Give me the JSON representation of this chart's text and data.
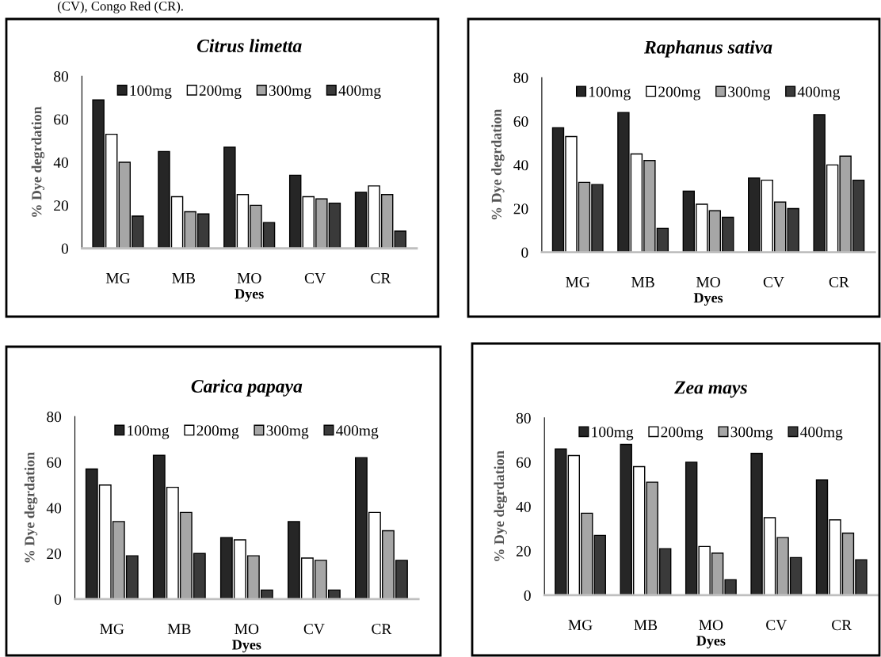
{
  "chart_data": [
    {
      "type": "bar",
      "title": "Citrus limetta",
      "xlabel": "Dyes",
      "ylabel": "% Dye degrdation",
      "annotations": [
        "(CV), Congo Red (CR)."
      ],
      "categories": [
        "MG",
        "MB",
        "MO",
        "CV",
        "CR"
      ],
      "ylim": [
        0,
        80
      ],
      "yticks": [
        0,
        20,
        40,
        60,
        80
      ],
      "grid": false,
      "legend": "top",
      "series": [
        {
          "name": "100mg",
          "color": "#262626",
          "values": [
            69,
            45,
            47,
            34,
            26
          ]
        },
        {
          "name": "200mg",
          "color": "#ffffff",
          "values": [
            53,
            24,
            25,
            24,
            29
          ]
        },
        {
          "name": "300mg",
          "color": "#a6a6a6",
          "values": [
            40,
            17,
            20,
            23,
            25
          ]
        },
        {
          "name": "400mg",
          "color": "#3a3a3a",
          "values": [
            15,
            16,
            12,
            21,
            8
          ]
        }
      ]
    },
    {
      "type": "bar",
      "title": "Raphanus sativa",
      "xlabel": "Dyes",
      "ylabel": "% Dye degrdation",
      "categories": [
        "MG",
        "MB",
        "MO",
        "CV",
        "CR"
      ],
      "ylim": [
        0,
        80
      ],
      "yticks": [
        0,
        20,
        40,
        60,
        80
      ],
      "grid": false,
      "legend": "top",
      "series": [
        {
          "name": "100mg",
          "color": "#262626",
          "values": [
            57,
            64,
            28,
            34,
            63
          ]
        },
        {
          "name": "200mg",
          "color": "#ffffff",
          "values": [
            53,
            45,
            22,
            33,
            40
          ]
        },
        {
          "name": "300mg",
          "color": "#a6a6a6",
          "values": [
            32,
            42,
            19,
            23,
            44
          ]
        },
        {
          "name": "400mg",
          "color": "#3a3a3a",
          "values": [
            31,
            11,
            16,
            20,
            33
          ]
        }
      ]
    },
    {
      "type": "bar",
      "title": "Carica papaya",
      "xlabel": "Dyes",
      "ylabel": "% Dye degrdation",
      "categories": [
        "MG",
        "MB",
        "MO",
        "CV",
        "CR"
      ],
      "ylim": [
        0,
        80
      ],
      "yticks": [
        0,
        20,
        40,
        60,
        80
      ],
      "grid": false,
      "legend": "top",
      "series": [
        {
          "name": "100mg",
          "color": "#262626",
          "values": [
            57,
            63,
            27,
            34,
            62
          ]
        },
        {
          "name": "200mg",
          "color": "#ffffff",
          "values": [
            50,
            49,
            26,
            18,
            38
          ]
        },
        {
          "name": "300mg",
          "color": "#a6a6a6",
          "values": [
            34,
            38,
            19,
            17,
            30
          ]
        },
        {
          "name": "400mg",
          "color": "#3a3a3a",
          "values": [
            19,
            20,
            4,
            4,
            17
          ]
        }
      ]
    },
    {
      "type": "bar",
      "title": "Zea mays",
      "xlabel": "Dyes",
      "ylabel": "% Dye degrdation",
      "categories": [
        "MG",
        "MB",
        "MO",
        "CV",
        "CR"
      ],
      "ylim": [
        0,
        80
      ],
      "yticks": [
        0,
        20,
        40,
        60,
        80
      ],
      "grid": false,
      "legend": "top",
      "series": [
        {
          "name": "100mg",
          "color": "#262626",
          "values": [
            66,
            68,
            60,
            64,
            52
          ]
        },
        {
          "name": "200mg",
          "color": "#ffffff",
          "values": [
            63,
            58,
            22,
            35,
            34
          ]
        },
        {
          "name": "300mg",
          "color": "#a6a6a6",
          "values": [
            37,
            51,
            19,
            26,
            28
          ]
        },
        {
          "name": "400mg",
          "color": "#3a3a3a",
          "values": [
            27,
            21,
            7,
            17,
            16
          ]
        }
      ]
    }
  ]
}
